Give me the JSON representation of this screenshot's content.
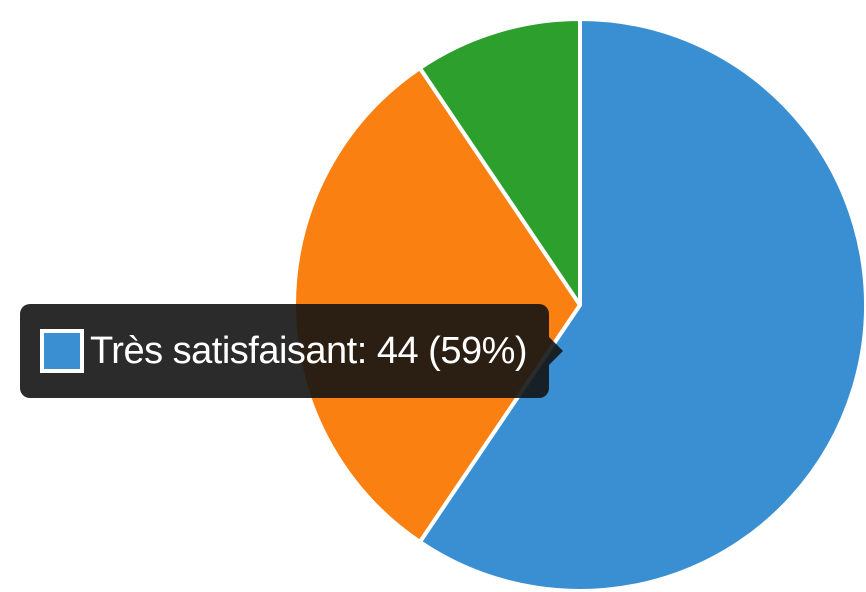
{
  "chart_data": {
    "type": "pie",
    "slices": [
      {
        "name": "Très satisfaisant",
        "value": 44,
        "color": "#3a8fd2"
      },
      {
        "name": "",
        "value": 23,
        "color": "#f98011"
      },
      {
        "name": "",
        "value": 7,
        "color": "#2c9f2c"
      }
    ],
    "title": "",
    "legend": "none"
  },
  "tooltip": {
    "label": "Très satisfaisant",
    "value": 44,
    "percent": "59%",
    "text": "Très satisfaisant: 44 (59%)",
    "swatch_color": "#3a8fd2"
  }
}
